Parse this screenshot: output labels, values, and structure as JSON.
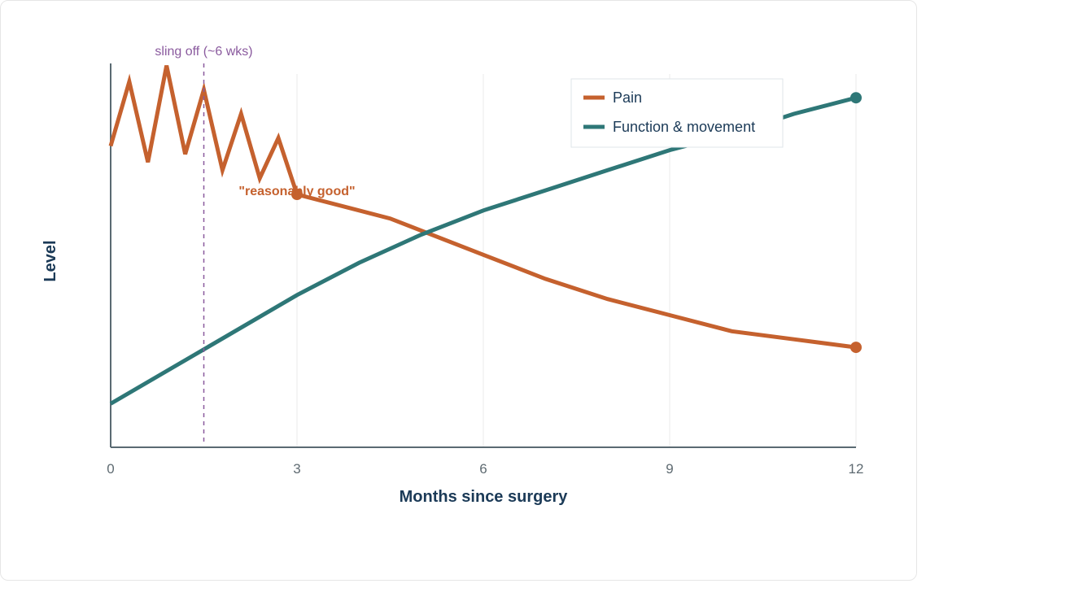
{
  "chart_data": {
    "type": "line",
    "xlabel": "Months since surgery",
    "ylabel": "Level",
    "xlim": [
      0,
      12
    ],
    "ylim": [
      0,
      100
    ],
    "xticks": [
      0,
      3,
      6,
      9,
      12
    ],
    "grid": "vertical",
    "legend_position": "top-right",
    "series": [
      {
        "name": "Pain",
        "color": "#c5612e",
        "x": [
          0,
          0.3,
          0.6,
          0.9,
          1.2,
          1.5,
          1.8,
          2.1,
          2.4,
          2.7,
          3,
          4.5,
          6,
          7,
          8,
          9,
          10,
          11,
          12
        ],
        "y": [
          72,
          88,
          68,
          92,
          70,
          86,
          66,
          80,
          64,
          74,
          60,
          54,
          45,
          39,
          34,
          30,
          26,
          24,
          22
        ],
        "endpoint_markers": [
          3,
          12
        ]
      },
      {
        "name": "Function & movement",
        "color": "#2e7777",
        "x": [
          0,
          1,
          2,
          3,
          4,
          5,
          6,
          7,
          8,
          9,
          10,
          11,
          12
        ],
        "y": [
          8,
          17,
          26,
          35,
          43,
          50,
          56,
          61,
          66,
          71,
          75,
          80,
          84
        ],
        "endpoint_markers": [
          12
        ]
      }
    ],
    "annotations": [
      {
        "type": "vline",
        "x": 1.5,
        "label": "sling off (~6 wks)",
        "color": "#8a5a9e"
      },
      {
        "type": "text",
        "x": 3,
        "y": 68,
        "label": "\"reasonably good\"",
        "color": "#c5612e"
      }
    ]
  }
}
